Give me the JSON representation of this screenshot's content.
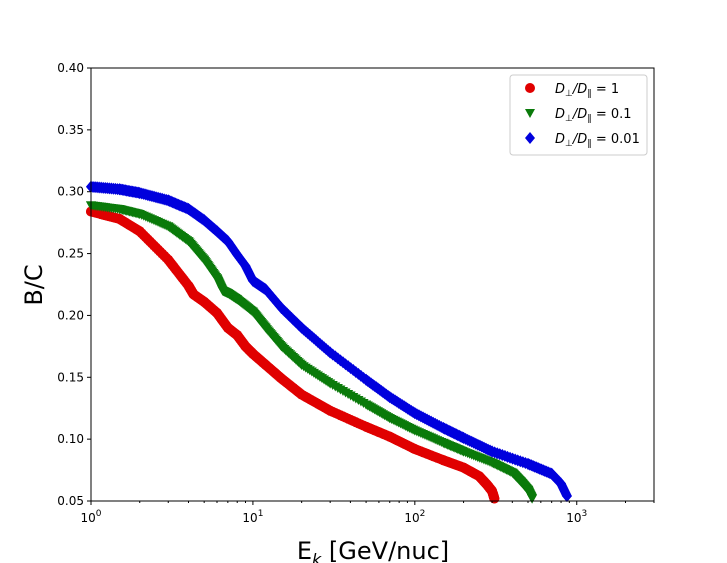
{
  "chart_data": {
    "type": "scatter",
    "title": "",
    "xlabel_main": "E",
    "xlabel_sub": "k",
    "xlabel_rest": " [GeV/nuc]",
    "ylabel": "B/C",
    "xscale": "log",
    "xlim": [
      1,
      3000
    ],
    "ylim": [
      0.05,
      0.4
    ],
    "x_ticks": [
      {
        "value": 1,
        "base": "10",
        "exp": "0"
      },
      {
        "value": 10,
        "base": "10",
        "exp": "1"
      },
      {
        "value": 100,
        "base": "10",
        "exp": "2"
      },
      {
        "value": 1000,
        "base": "10",
        "exp": "3"
      }
    ],
    "y_ticks": [
      {
        "value": 0.05,
        "label": "0.05"
      },
      {
        "value": 0.1,
        "label": "0.10"
      },
      {
        "value": 0.15,
        "label": "0.15"
      },
      {
        "value": 0.2,
        "label": "0.20"
      },
      {
        "value": 0.25,
        "label": "0.25"
      },
      {
        "value": 0.3,
        "label": "0.30"
      },
      {
        "value": 0.35,
        "label": "0.35"
      },
      {
        "value": 0.4,
        "label": "0.40"
      }
    ],
    "legend_position": "upper-right",
    "series": [
      {
        "name": "D⊥/D‖ = 1",
        "label_sub_top": "⊥",
        "label_sub_bottom": "‖",
        "label_value": "1",
        "color": "#e00000",
        "marker": "circle",
        "x": [
          1.0,
          1.5,
          2.0,
          3.0,
          4.0,
          4.3,
          5.0,
          6.0,
          7.0,
          8.0,
          9.0,
          10.0,
          12.0,
          15.0,
          20.0,
          30.0,
          50.0,
          70.0,
          100.0,
          150.0,
          200.0,
          250.0,
          280.0,
          300.0,
          310.0
        ],
        "y": [
          0.284,
          0.278,
          0.268,
          0.245,
          0.224,
          0.217,
          0.211,
          0.202,
          0.19,
          0.184,
          0.175,
          0.169,
          0.16,
          0.149,
          0.136,
          0.123,
          0.11,
          0.102,
          0.092,
          0.083,
          0.077,
          0.07,
          0.063,
          0.058,
          0.052
        ]
      },
      {
        "name": "D⊥/D‖ = 0.1",
        "label_sub_top": "⊥",
        "label_sub_bottom": "‖",
        "label_value": "0.1",
        "color": "#0a7a0a",
        "marker": "triangle-down",
        "x": [
          1.0,
          1.5,
          2.0,
          3.0,
          4.0,
          5.0,
          6.0,
          6.5,
          7.0,
          8.0,
          10.0,
          12.0,
          15.0,
          20.0,
          30.0,
          50.0,
          70.0,
          100.0,
          150.0,
          200.0,
          300.0,
          400.0,
          450.0,
          500.0,
          530.0
        ],
        "y": [
          0.289,
          0.286,
          0.282,
          0.272,
          0.26,
          0.245,
          0.23,
          0.22,
          0.218,
          0.213,
          0.203,
          0.19,
          0.175,
          0.16,
          0.145,
          0.128,
          0.117,
          0.107,
          0.097,
          0.09,
          0.081,
          0.073,
          0.066,
          0.059,
          0.052
        ]
      },
      {
        "name": "D⊥/D‖ = 0.01",
        "label_sub_top": "⊥",
        "label_sub_bottom": "‖",
        "label_value": "0.01",
        "color": "#0000dd",
        "marker": "diamond",
        "x": [
          1.0,
          1.5,
          2.0,
          3.0,
          4.0,
          5.0,
          6.0,
          7.0,
          8.0,
          9.0,
          10.0,
          12.0,
          15.0,
          20.0,
          30.0,
          50.0,
          70.0,
          100.0,
          150.0,
          200.0,
          300.0,
          500.0,
          700.0,
          800.0,
          870.0
        ],
        "y": [
          0.304,
          0.302,
          0.299,
          0.293,
          0.286,
          0.277,
          0.268,
          0.26,
          0.249,
          0.24,
          0.228,
          0.221,
          0.206,
          0.19,
          0.17,
          0.148,
          0.134,
          0.121,
          0.109,
          0.101,
          0.09,
          0.08,
          0.072,
          0.064,
          0.054
        ]
      }
    ]
  }
}
